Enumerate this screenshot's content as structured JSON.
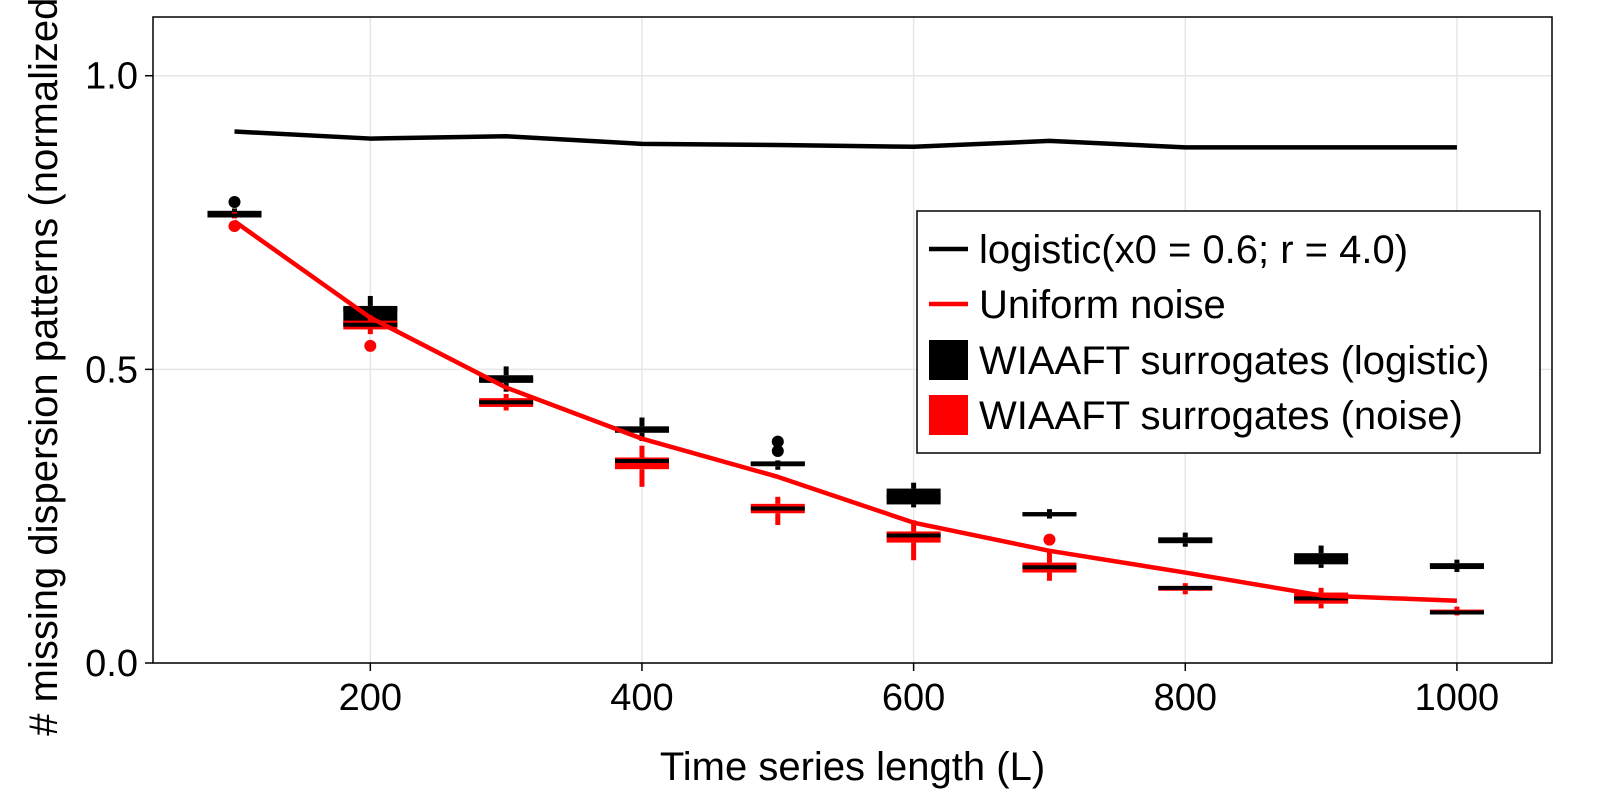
{
  "chart_data": {
    "type": "line",
    "xlabel": "Time series length (L)",
    "ylabel": "# missing dispersion patterns (normalized)",
    "xlim": [
      40,
      1070
    ],
    "ylim": [
      0.0,
      1.1
    ],
    "x_ticks": [
      200,
      400,
      600,
      800,
      1000
    ],
    "y_ticks": [
      0.0,
      0.5,
      1.0
    ],
    "x_tick_labels": [
      "200",
      "400",
      "600",
      "800",
      "1000"
    ],
    "y_tick_labels": [
      "0.0",
      "0.5",
      "1.0"
    ],
    "grid": true,
    "legend_position": "right",
    "colors": {
      "logistic": "#000000",
      "noise": "#ff0000",
      "grid": "#e6e6e6"
    },
    "lines": [
      {
        "name": "logistic(x0 = 0.6; r = 4.0)",
        "color": "#000000",
        "x": [
          100,
          200,
          300,
          400,
          500,
          600,
          700,
          800,
          900,
          1000
        ],
        "y": [
          0.905,
          0.893,
          0.897,
          0.884,
          0.882,
          0.879,
          0.889,
          0.878,
          0.878,
          0.878
        ]
      },
      {
        "name": "Uniform noise",
        "color": "#ff0000",
        "x": [
          100,
          200,
          300,
          400,
          500,
          600,
          700,
          800,
          900,
          1000
        ],
        "y": [
          0.752,
          0.588,
          0.469,
          0.382,
          0.317,
          0.239,
          0.191,
          0.154,
          0.115,
          0.106
        ]
      }
    ],
    "boxes": [
      {
        "name": "WIAAFT surrogates (logistic)",
        "color": "#000000",
        "items": [
          {
            "x": 100,
            "min": 0.762,
            "q1": 0.762,
            "median": 0.766,
            "q3": 0.77,
            "max": 0.774,
            "outliers": [
              0.785
            ]
          },
          {
            "x": 200,
            "min": 0.568,
            "q1": 0.573,
            "median": 0.602,
            "q3": 0.608,
            "max": 0.625,
            "outliers": []
          },
          {
            "x": 300,
            "min": 0.462,
            "q1": 0.477,
            "median": 0.482,
            "q3": 0.49,
            "max": 0.505,
            "outliers": []
          },
          {
            "x": 400,
            "min": 0.378,
            "q1": 0.392,
            "median": 0.398,
            "q3": 0.403,
            "max": 0.418,
            "outliers": []
          },
          {
            "x": 500,
            "min": 0.329,
            "q1": 0.335,
            "median": 0.34,
            "q3": 0.342,
            "max": 0.345,
            "outliers": [
              0.361,
              0.377
            ]
          },
          {
            "x": 600,
            "min": 0.265,
            "q1": 0.27,
            "median": 0.283,
            "q3": 0.297,
            "max": 0.307,
            "outliers": []
          },
          {
            "x": 700,
            "min": 0.246,
            "q1": 0.25,
            "median": 0.253,
            "q3": 0.257,
            "max": 0.262,
            "outliers": []
          },
          {
            "x": 800,
            "min": 0.198,
            "q1": 0.204,
            "median": 0.209,
            "q3": 0.214,
            "max": 0.222,
            "outliers": []
          },
          {
            "x": 900,
            "min": 0.162,
            "q1": 0.168,
            "median": 0.175,
            "q3": 0.187,
            "max": 0.2,
            "outliers": []
          },
          {
            "x": 1000,
            "min": 0.155,
            "q1": 0.16,
            "median": 0.166,
            "q3": 0.17,
            "max": 0.176,
            "outliers": []
          }
        ]
      },
      {
        "name": "WIAAFT surrogates (noise)",
        "color": "#ff0000",
        "items": [
          {
            "x": 100,
            "min": 0.757,
            "q1": 0.76,
            "median": 0.762,
            "q3": 0.765,
            "max": 0.768,
            "outliers": [
              0.744
            ]
          },
          {
            "x": 200,
            "min": 0.56,
            "q1": 0.568,
            "median": 0.576,
            "q3": 0.583,
            "max": 0.592,
            "outliers": [
              0.54
            ]
          },
          {
            "x": 300,
            "min": 0.43,
            "q1": 0.436,
            "median": 0.444,
            "q3": 0.451,
            "max": 0.458,
            "outliers": []
          },
          {
            "x": 400,
            "min": 0.3,
            "q1": 0.33,
            "median": 0.344,
            "q3": 0.35,
            "max": 0.37,
            "outliers": []
          },
          {
            "x": 500,
            "min": 0.235,
            "q1": 0.255,
            "median": 0.263,
            "q3": 0.271,
            "max": 0.283,
            "outliers": []
          },
          {
            "x": 600,
            "min": 0.175,
            "q1": 0.205,
            "median": 0.217,
            "q3": 0.224,
            "max": 0.243,
            "outliers": []
          },
          {
            "x": 700,
            "min": 0.14,
            "q1": 0.154,
            "median": 0.163,
            "q3": 0.171,
            "max": 0.19,
            "outliers": [
              0.21
            ]
          },
          {
            "x": 800,
            "min": 0.117,
            "q1": 0.123,
            "median": 0.128,
            "q3": 0.131,
            "max": 0.136,
            "outliers": []
          },
          {
            "x": 900,
            "min": 0.093,
            "q1": 0.101,
            "median": 0.11,
            "q3": 0.12,
            "max": 0.128,
            "outliers": []
          },
          {
            "x": 1000,
            "min": 0.081,
            "q1": 0.084,
            "median": 0.086,
            "q3": 0.091,
            "max": 0.096,
            "outliers": []
          }
        ]
      }
    ],
    "legend": [
      {
        "label": "logistic(x0 = 0.6; r = 4.0)",
        "kind": "line",
        "color": "#000000"
      },
      {
        "label": "Uniform noise",
        "kind": "line",
        "color": "#ff0000"
      },
      {
        "label": "WIAAFT surrogates (logistic)",
        "kind": "patch",
        "color": "#000000"
      },
      {
        "label": "WIAAFT surrogates (noise)",
        "kind": "patch",
        "color": "#ff0000"
      }
    ]
  }
}
